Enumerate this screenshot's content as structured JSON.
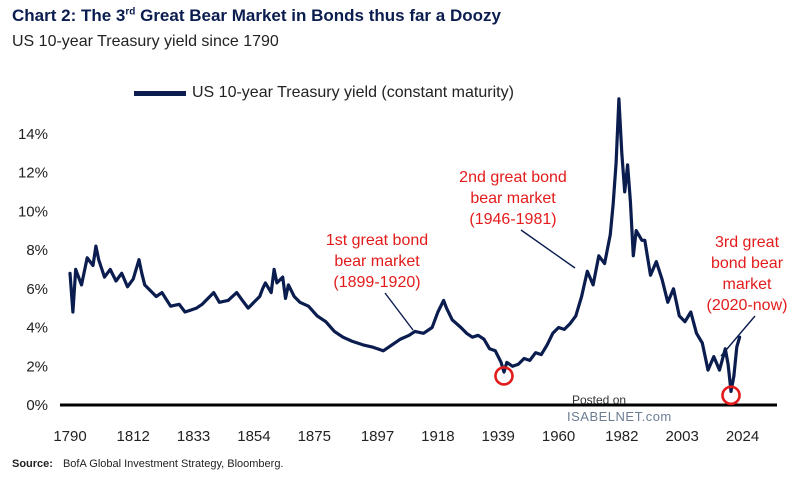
{
  "title_prefix": "Chart 2: The 3",
  "title_sup": "rd",
  "title_suffix": "Great Bear Market in Bonds thus far a Doozy",
  "subtitle": "US 10-year Treasury yield since 1790",
  "legend_label": "US 10-year Treasury yield (constant maturity)",
  "source_label": "Source:",
  "source_text": "BofA Global Investment Strategy, Bloomberg.",
  "watermark_line1": "Posted on",
  "watermark_line2": "ISABELNET.com",
  "colors": {
    "series": "#0b1d4f",
    "annotation": "#e31b1b",
    "axis": "#000000"
  },
  "annotations": [
    {
      "lines": [
        "1st great bond",
        "bear market",
        "(1899-1920)"
      ],
      "anchor_year": 1913,
      "anchor_value": 3.6
    },
    {
      "lines": [
        "2nd great bond",
        "bear market",
        "(1946-1981)"
      ],
      "anchor_year": 1968,
      "anchor_value": 6.6
    },
    {
      "lines": [
        "3rd great",
        "bond bear",
        "market",
        "(2020-now)"
      ],
      "anchor_year": 2024,
      "anchor_value": 3.5
    }
  ],
  "circles": [
    {
      "year": 1941,
      "value": 1.5
    },
    {
      "year": 2020,
      "value": 0.5
    }
  ],
  "chart_data": {
    "type": "line",
    "title": "Chart 2: The 3rd Great Bear Market in Bonds thus far a Doozy",
    "subtitle": "US 10-year Treasury yield since 1790",
    "xlabel": "",
    "ylabel": "",
    "x_ticks": [
      1790,
      1812,
      1833,
      1854,
      1875,
      1897,
      1918,
      1939,
      1960,
      1982,
      2003,
      2024
    ],
    "y_ticks": [
      0,
      2,
      4,
      6,
      8,
      10,
      12,
      14
    ],
    "y_tick_labels": [
      "0%",
      "2%",
      "4%",
      "6%",
      "8%",
      "10%",
      "12%",
      "14%"
    ],
    "xlim": [
      1790,
      2036
    ],
    "ylim": [
      0,
      16
    ],
    "grid": false,
    "legend": "top-left",
    "series": [
      {
        "name": "US 10-year Treasury yield (constant maturity)",
        "x": [
          1790,
          1791,
          1792,
          1794,
          1796,
          1798,
          1799,
          1800,
          1802,
          1804,
          1806,
          1808,
          1810,
          1812,
          1814,
          1815,
          1816,
          1818,
          1820,
          1822,
          1825,
          1828,
          1830,
          1832,
          1834,
          1836,
          1838,
          1840,
          1842,
          1845,
          1848,
          1850,
          1852,
          1854,
          1856,
          1857,
          1858,
          1860,
          1861,
          1862,
          1864,
          1865,
          1866,
          1868,
          1870,
          1873,
          1876,
          1879,
          1882,
          1885,
          1888,
          1892,
          1895,
          1899,
          1902,
          1905,
          1908,
          1910,
          1913,
          1916,
          1918,
          1920,
          1921,
          1923,
          1926,
          1928,
          1930,
          1932,
          1934,
          1936,
          1938,
          1940,
          1941,
          1942,
          1944,
          1946,
          1948,
          1950,
          1952,
          1954,
          1956,
          1958,
          1960,
          1962,
          1964,
          1966,
          1968,
          1970,
          1972,
          1974,
          1976,
          1978,
          1979,
          1980,
          1981,
          1982,
          1983,
          1984,
          1985,
          1986,
          1987,
          1989,
          1990,
          1992,
          1994,
          1996,
          1998,
          2000,
          2002,
          2004,
          2006,
          2008,
          2010,
          2012,
          2014,
          2016,
          2018,
          2019,
          2020,
          2021,
          2022,
          2023
        ],
        "values": [
          6.8,
          4.8,
          7.0,
          6.2,
          7.6,
          7.2,
          8.2,
          7.5,
          6.6,
          7.0,
          6.4,
          6.8,
          6.1,
          6.5,
          7.5,
          6.8,
          6.2,
          5.9,
          5.6,
          5.8,
          5.1,
          5.2,
          4.8,
          4.9,
          5.0,
          5.2,
          5.5,
          5.8,
          5.3,
          5.4,
          5.8,
          5.4,
          5.0,
          5.3,
          5.6,
          6.0,
          6.3,
          5.8,
          7.0,
          6.3,
          6.6,
          5.5,
          6.2,
          5.6,
          5.3,
          5.1,
          4.6,
          4.3,
          3.8,
          3.5,
          3.3,
          3.1,
          3.0,
          2.8,
          3.1,
          3.4,
          3.6,
          3.8,
          3.7,
          4.0,
          4.8,
          5.4,
          5.0,
          4.4,
          4.0,
          3.7,
          3.5,
          3.6,
          3.4,
          2.9,
          2.8,
          2.2,
          1.7,
          2.2,
          2.0,
          2.1,
          2.4,
          2.3,
          2.7,
          2.6,
          3.1,
          3.7,
          4.0,
          3.9,
          4.2,
          4.6,
          5.6,
          6.9,
          6.2,
          7.7,
          7.3,
          8.8,
          10.4,
          12.5,
          15.8,
          13.0,
          11.0,
          12.4,
          10.5,
          7.7,
          9.0,
          8.5,
          8.5,
          6.7,
          7.4,
          6.5,
          5.3,
          6.0,
          4.6,
          4.3,
          4.8,
          3.7,
          3.2,
          1.8,
          2.5,
          1.8,
          2.9,
          2.1,
          0.7,
          1.5,
          3.0,
          3.5
        ]
      }
    ]
  }
}
